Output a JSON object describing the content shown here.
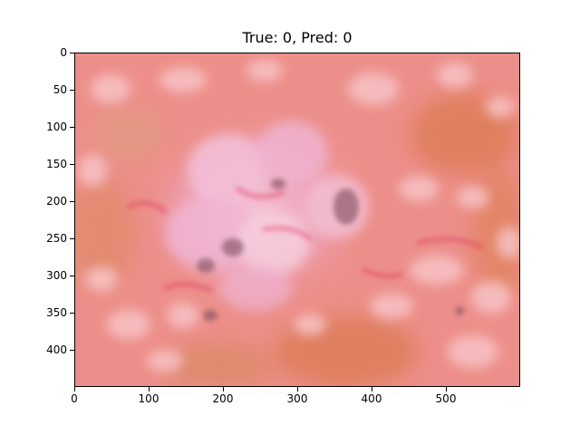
{
  "figure": {
    "title": "True: 0, Pred: 0",
    "image_icon": "dermoscopy-skin-lesion-image",
    "image_colors": {
      "base": "#ec8f8a",
      "light_patch": "#f8c3c6",
      "brown_area": "#d9794e",
      "dark_spot": "#7d4c5c",
      "vascular_red": "#e0305a"
    }
  },
  "chart_data": {
    "type": "image",
    "title": "True: 0, Pred: 0",
    "xlabel": "",
    "ylabel": "",
    "xlim": [
      0,
      600
    ],
    "ylim": [
      450,
      0
    ],
    "x_ticks": [
      "0",
      "100",
      "200",
      "300",
      "400",
      "500"
    ],
    "y_ticks": [
      "0",
      "50",
      "100",
      "150",
      "200",
      "250",
      "300",
      "350",
      "400"
    ],
    "grid": false
  }
}
